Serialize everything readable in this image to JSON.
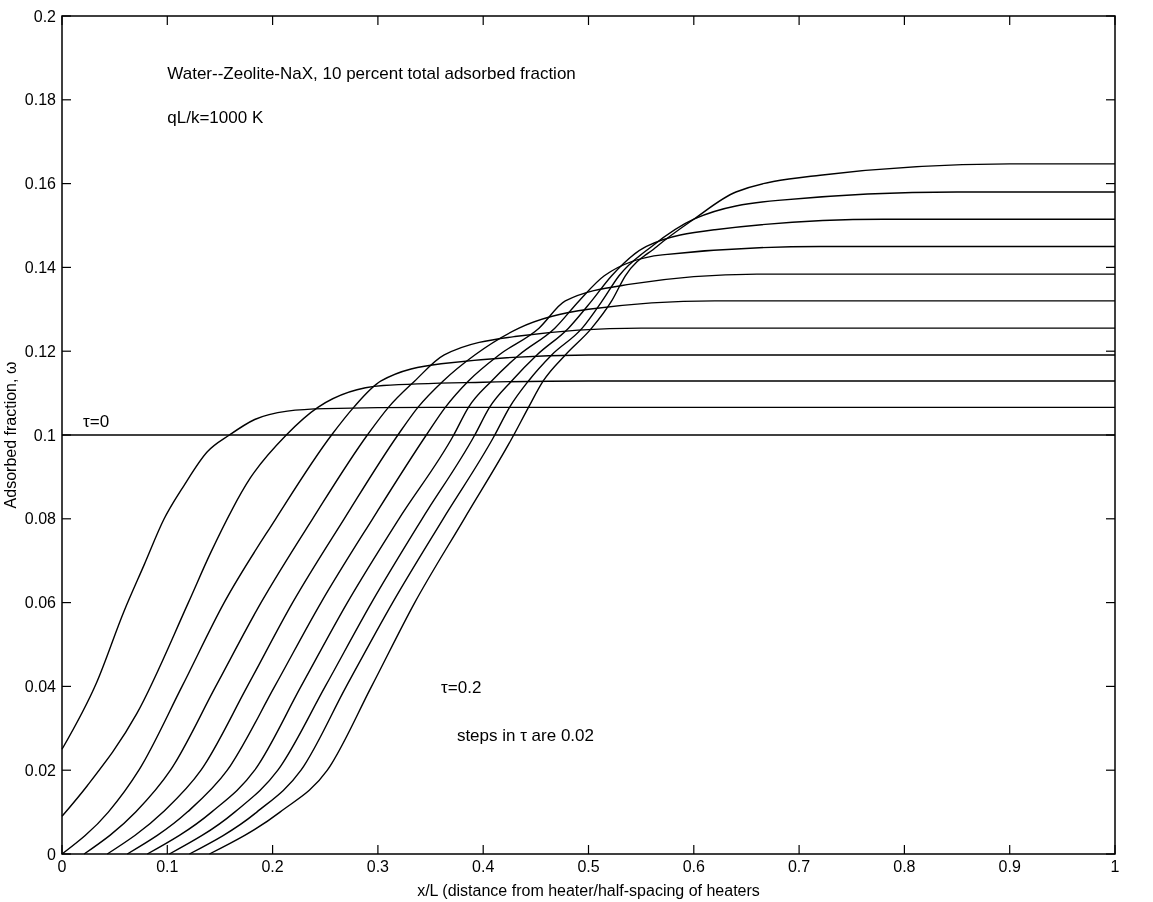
{
  "chart_data": {
    "type": "line",
    "xlabel": "x/L (distance from heater/half-spacing of heaters",
    "ylabel": "Adsorbed fraction, ω",
    "xlim": [
      0,
      1
    ],
    "ylim": [
      0,
      0.2
    ],
    "xticks": [
      0,
      0.1,
      0.2,
      0.3,
      0.4,
      0.5,
      0.6,
      0.7,
      0.8,
      0.9,
      1
    ],
    "yticks": [
      0,
      0.02,
      0.04,
      0.06,
      0.08,
      0.1,
      0.12,
      0.14,
      0.16,
      0.18,
      0.2
    ],
    "grid": false,
    "annotations": [
      "Water--Zeolite-NaX, 10 percent total adsorbed fraction",
      "qL/k=1000 K",
      {
        "text": "τ=0",
        "x": 0.02,
        "y": 0.1
      },
      "τ=0.2",
      "steps in τ are 0.02"
    ],
    "series": [
      {
        "color": "#000000",
        "x": [
          0,
          1
        ],
        "values": [
          0.1,
          0.1
        ]
      },
      {
        "color": "#000000",
        "x": [
          0,
          0.033,
          0.059,
          0.078,
          0.097,
          0.116,
          0.138,
          0.159,
          0.183,
          0.214,
          0.25,
          0.35,
          1
        ],
        "values": [
          0.025,
          0.041,
          0.058,
          0.069,
          0.08,
          0.088,
          0.096,
          0.1,
          0.1037,
          0.1057,
          0.1063,
          0.1066,
          0.1066
        ]
      },
      {
        "color": "#000000",
        "x": [
          0,
          0.024,
          0.071,
          0.12,
          0.141,
          0.179,
          0.213,
          0.243,
          0.305,
          0.4,
          0.5,
          1
        ],
        "values": [
          0.009,
          0.0163,
          0.0335,
          0.06,
          0.0718,
          0.0898,
          0.1,
          0.1066,
          0.1118,
          0.1126,
          0.1129,
          0.1129
        ]
      },
      {
        "color": "#000000",
        "x": [
          0,
          0.044,
          0.073,
          0.114,
          0.154,
          0.203,
          0.256,
          0.277,
          0.303,
          0.36,
          0.5,
          1
        ],
        "values": [
          0,
          0.01,
          0.02,
          0.04,
          0.06,
          0.08,
          0.1,
          0.1066,
          0.1129,
          0.117,
          0.1191,
          0.1191
        ]
      },
      {
        "color": "#000000",
        "x": [
          0.021,
          0.07,
          0.103,
          0.146,
          0.189,
          0.238,
          0.29,
          0.31,
          0.335,
          0.363,
          0.43,
          0.55,
          1
        ],
        "values": [
          0,
          0.01,
          0.02,
          0.04,
          0.06,
          0.08,
          0.1,
          0.1066,
          0.1129,
          0.1191,
          0.1235,
          0.1255,
          0.1255
        ]
      },
      {
        "color": "#000000",
        "x": [
          0.043,
          0.096,
          0.132,
          0.176,
          0.219,
          0.268,
          0.319,
          0.338,
          0.362,
          0.392,
          0.434,
          0.5,
          0.62,
          1
        ],
        "values": [
          0,
          0.01,
          0.02,
          0.04,
          0.06,
          0.08,
          0.1,
          0.1066,
          0.1129,
          0.1191,
          0.1255,
          0.13,
          0.132,
          0.132
        ]
      },
      {
        "color": "#000000",
        "x": [
          0.062,
          0.119,
          0.157,
          0.202,
          0.246,
          0.295,
          0.346,
          0.364,
          0.386,
          0.415,
          0.453,
          0.478,
          0.54,
          0.66,
          1
        ],
        "values": [
          0,
          0.01,
          0.02,
          0.04,
          0.06,
          0.08,
          0.1,
          0.1066,
          0.1129,
          0.1191,
          0.1255,
          0.132,
          0.136,
          0.1384,
          0.1384
        ]
      },
      {
        "color": "#000000",
        "x": [
          0.081,
          0.142,
          0.183,
          0.227,
          0.271,
          0.32,
          0.372,
          0.386,
          0.408,
          0.434,
          0.468,
          0.491,
          0.515,
          0.57,
          0.72,
          1
        ],
        "values": [
          0,
          0.01,
          0.02,
          0.04,
          0.06,
          0.08,
          0.1,
          0.1066,
          0.1129,
          0.1191,
          0.1255,
          0.132,
          0.138,
          0.143,
          0.145,
          0.145
        ]
      },
      {
        "color": "#000000",
        "x": [
          0.102,
          0.164,
          0.205,
          0.25,
          0.294,
          0.342,
          0.392,
          0.406,
          0.427,
          0.451,
          0.481,
          0.503,
          0.522,
          0.555,
          0.62,
          0.78,
          1
        ],
        "values": [
          0,
          0.01,
          0.02,
          0.04,
          0.06,
          0.08,
          0.1,
          0.1066,
          0.1129,
          0.1191,
          0.1255,
          0.132,
          0.138,
          0.145,
          0.149,
          0.1515,
          0.1515
        ]
      },
      {
        "color": "#000000",
        "x": [
          0.121,
          0.185,
          0.227,
          0.27,
          0.314,
          0.362,
          0.411,
          0.425,
          0.443,
          0.465,
          0.494,
          0.513,
          0.529,
          0.56,
          0.6,
          0.68,
          0.85,
          1
        ],
        "values": [
          0,
          0.01,
          0.02,
          0.04,
          0.06,
          0.08,
          0.1,
          0.1066,
          0.1129,
          0.1191,
          0.1255,
          0.132,
          0.138,
          0.145,
          0.1515,
          0.156,
          0.158,
          0.158
        ]
      },
      {
        "color": "#000000",
        "x": [
          0.14,
          0.207,
          0.252,
          0.294,
          0.335,
          0.382,
          0.429,
          0.443,
          0.457,
          0.478,
          0.503,
          0.522,
          0.535,
          0.565,
          0.6,
          0.64,
          0.72,
          0.9,
          1
        ],
        "values": [
          0,
          0.01,
          0.02,
          0.04,
          0.06,
          0.08,
          0.1,
          0.1066,
          0.1129,
          0.1191,
          0.1255,
          0.132,
          0.138,
          0.145,
          0.1515,
          0.158,
          0.162,
          0.1647,
          0.1647
        ]
      }
    ]
  }
}
